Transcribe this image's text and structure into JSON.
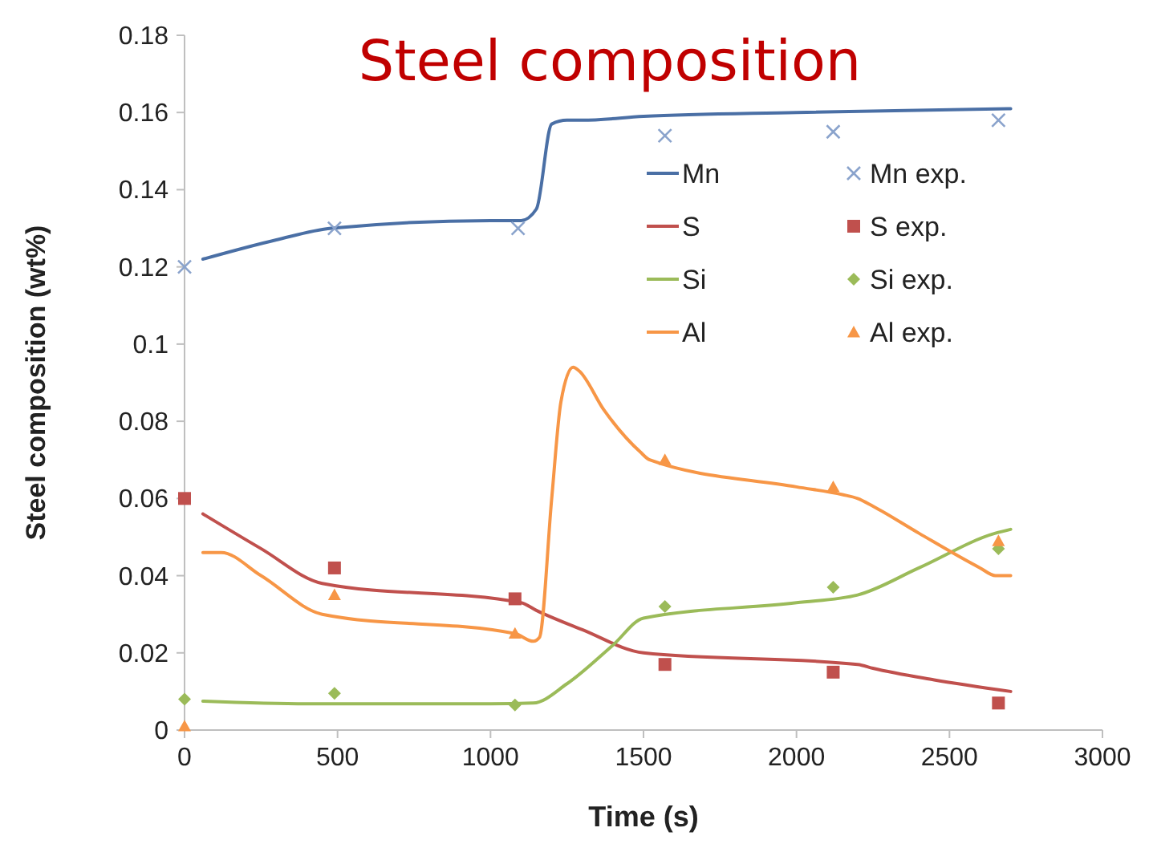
{
  "chart_data": {
    "type": "line",
    "title": "Steel composition",
    "xlabel": "Time (s)",
    "ylabel": "Steel composition (wt%)",
    "xlim": [
      0,
      3000
    ],
    "xticks": [
      0,
      500,
      1000,
      1500,
      2000,
      2500,
      3000
    ],
    "ylim": [
      0,
      0.18
    ],
    "yticks": [
      0,
      0.02,
      0.04,
      0.06,
      0.08,
      0.1,
      0.12,
      0.14,
      0.16,
      0.18
    ],
    "grid": false,
    "legend": "top right",
    "line_style": "solid",
    "series": [
      {
        "name": "Mn",
        "color": "#4a6fa5",
        "marker": "none",
        "x": [
          60,
          300,
          480,
          1000,
          1100,
          1150,
          1200,
          1250,
          1300,
          1500,
          2000,
          2700
        ],
        "values": [
          0.122,
          0.127,
          0.13,
          0.132,
          0.132,
          0.135,
          0.157,
          0.158,
          0.158,
          0.159,
          0.16,
          0.161
        ]
      },
      {
        "name": "Mn exp.",
        "type": "scatter",
        "color": "#8aa3cc",
        "marker": "cross",
        "x": [
          0,
          490,
          1090,
          1570,
          2120,
          2660
        ],
        "values": [
          0.12,
          0.13,
          0.13,
          0.154,
          0.155,
          0.158
        ]
      },
      {
        "name": "S",
        "color": "#c0504d",
        "marker": "none",
        "x": [
          60,
          250,
          450,
          1100,
          1150,
          1300,
          1500,
          2200,
          2250,
          2450,
          2700
        ],
        "values": [
          0.056,
          0.047,
          0.038,
          0.033,
          0.031,
          0.026,
          0.02,
          0.017,
          0.016,
          0.013,
          0.01
        ]
      },
      {
        "name": "S exp.",
        "type": "scatter",
        "color": "#c0504d",
        "marker": "square",
        "x": [
          0,
          490,
          1080,
          1570,
          2120,
          2660
        ],
        "values": [
          0.06,
          0.042,
          0.034,
          0.017,
          0.015,
          0.007
        ]
      },
      {
        "name": "Si",
        "color": "#9bbb59",
        "marker": "none",
        "x": [
          60,
          400,
          1000,
          1140,
          1250,
          1400,
          1500,
          2000,
          2200,
          2400,
          2650,
          2700
        ],
        "values": [
          0.0075,
          0.0068,
          0.0068,
          0.007,
          0.012,
          0.022,
          0.029,
          0.033,
          0.035,
          0.042,
          0.051,
          0.052
        ]
      },
      {
        "name": "Si exp.",
        "type": "scatter",
        "color": "#9bbb59",
        "marker": "diamond",
        "x": [
          0,
          490,
          1080,
          1570,
          2120,
          2660
        ],
        "values": [
          0.008,
          0.0095,
          0.0065,
          0.032,
          0.037,
          0.047
        ]
      },
      {
        "name": "Al",
        "color": "#f79646",
        "marker": "none",
        "x": [
          60,
          120,
          250,
          450,
          1080,
          1140,
          1160,
          1200,
          1230,
          1270,
          1290,
          1370,
          1490,
          1520,
          2000,
          2150,
          2200,
          2250,
          2400,
          2600,
          2650,
          2700
        ],
        "values": [
          0.046,
          0.046,
          0.04,
          0.03,
          0.025,
          0.023,
          0.024,
          0.06,
          0.085,
          0.094,
          0.093,
          0.083,
          0.072,
          0.07,
          0.063,
          0.061,
          0.06,
          0.058,
          0.051,
          0.042,
          0.04,
          0.04
        ]
      },
      {
        "name": "Al exp.",
        "type": "scatter",
        "color": "#f79646",
        "marker": "triangle",
        "x": [
          0,
          490,
          1080,
          1570,
          2120,
          2660
        ],
        "values": [
          0.001,
          0.035,
          0.025,
          0.07,
          0.063,
          0.049
        ]
      }
    ]
  }
}
